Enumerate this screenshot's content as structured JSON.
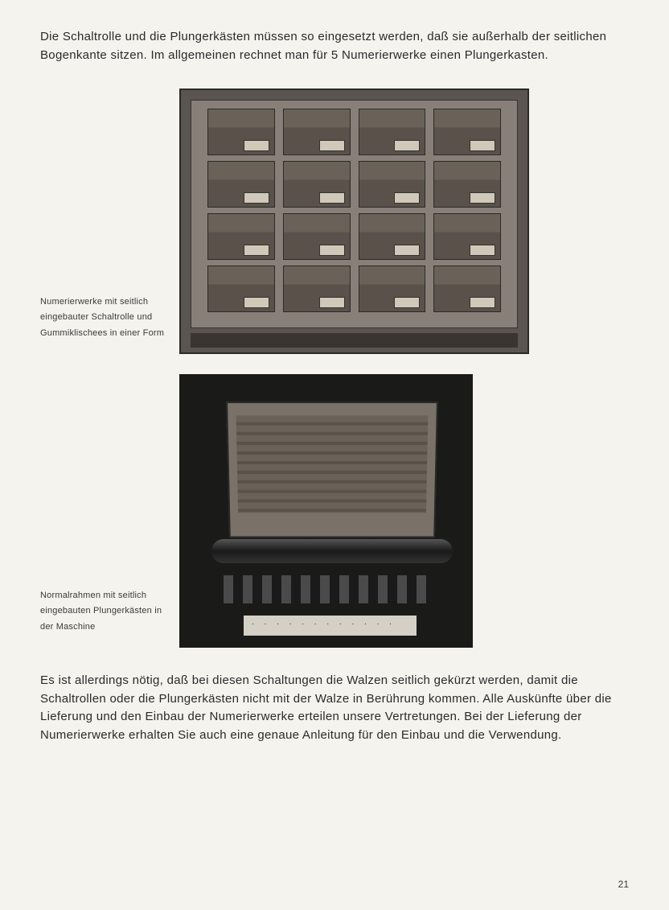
{
  "intro": "Die Schaltrolle und die Plungerkästen müssen so eingesetzt werden, daß sie außerhalb der seitlichen Bogenkante sitzen. Im allgemeinen rechnet man für 5 Numerierwerke einen Plungerkasten.",
  "caption1": "Numerierwerke mit seitlich eingebauter Schaltrolle und Gummiklischees in einer Form",
  "caption2": "Normalrahmen mit seitlich eingebauten Plungerkästen in der Maschine",
  "outro": "Es ist allerdings nötig, daß bei diesen Schaltungen die Walzen seitlich gekürzt werden, damit die Schaltrollen oder die Plungerkästen nicht mit der Walze in Berührung kommen.\nAlle Auskünfte über die Lieferung und den Einbau der Numerierwerke erteilen unsere Vertretungen. Bei der Lieferung der Numerierwerke erhalten Sie auch eine genaue Anleitung für den Einbau und die Verwendung.",
  "pageNumber": "21",
  "colors": {
    "pageBackground": "#f5f3ee",
    "text": "#2a2a2a",
    "captionText": "#3a3a3a"
  },
  "typography": {
    "bodyFontSize": 15,
    "captionFontSize": 11,
    "fontFamily": "Helvetica"
  }
}
